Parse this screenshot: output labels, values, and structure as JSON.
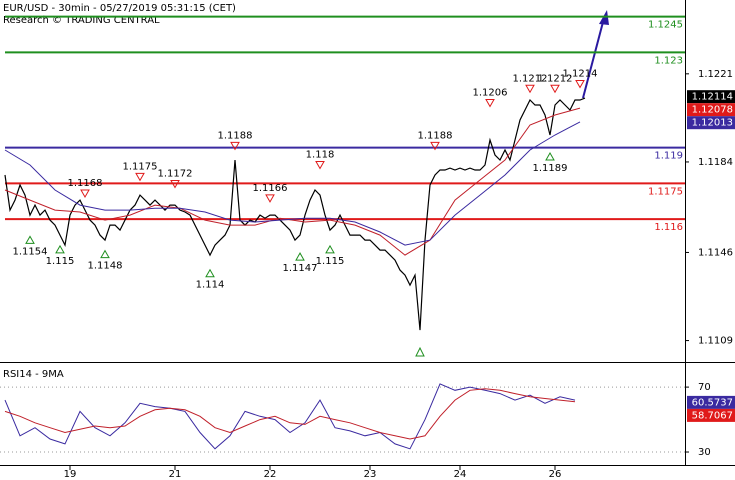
{
  "chart_data": [
    {
      "type": "line",
      "title": "EUR/USD - 30min - 05/27/2019 05:31:15 (CET)",
      "subtitle": "Research © TRADING CENTRAL",
      "xlim": [
        -1,
        136
      ],
      "ylim": [
        1.11,
        1.1252
      ],
      "yticks": [
        1.1221,
        1.1184,
        1.1146,
        1.1109
      ],
      "grid": false,
      "series": [
        {
          "color": "#000000",
          "values": [
            1.11785,
            1.11638,
            1.1168,
            1.11743,
            1.11701,
            1.11617,
            1.11659,
            1.11617,
            1.11638,
            1.11596,
            1.11575,
            1.11533,
            1.11491,
            1.11617,
            1.11659,
            1.1168,
            1.11638,
            1.11596,
            1.11575,
            1.11533,
            1.11512,
            1.11575,
            1.11575,
            1.11554,
            1.11596,
            1.11638,
            1.11659,
            1.11701,
            1.1168,
            1.11659,
            1.1168,
            1.11659,
            1.11638,
            1.11659,
            1.11659,
            1.11638,
            1.1163,
            1.11617,
            1.11575,
            1.11533,
            1.11491,
            1.11449,
            1.11491,
            1.11512,
            1.11533,
            1.11575,
            1.11848,
            1.11596,
            1.11575,
            1.11596,
            1.11588,
            1.11617,
            1.11604,
            1.11617,
            1.11617,
            1.11596,
            1.11575,
            1.11554,
            1.11512,
            1.11533,
            1.11617,
            1.1168,
            1.11722,
            1.11701,
            1.11617,
            1.11554,
            1.11575,
            1.11617,
            1.11575,
            1.11533,
            1.11533,
            1.11533,
            1.11512,
            1.11512,
            1.11491,
            1.1147,
            1.1147,
            1.11449,
            1.11428,
            1.11386,
            1.11365,
            1.11323,
            1.11365,
            1.11134,
            1.11512,
            1.11743,
            1.11785,
            1.11806,
            1.11806,
            1.11814,
            1.11806,
            1.11814,
            1.11806,
            1.11814,
            1.11806,
            1.11806,
            1.11827,
            1.11932,
            1.11869,
            1.11848,
            1.1189,
            1.11848,
            1.11932,
            1.12016,
            1.12058,
            1.121,
            1.12079,
            1.12079,
            1.12037,
            1.11953,
            1.12079,
            1.121,
            1.12079,
            1.12058,
            1.121,
            1.121,
            1.12108
          ]
        },
        {
          "color": "#c0202a",
          "x": [
            0,
            5,
            10,
            15,
            20,
            25,
            30,
            35,
            40,
            45,
            50,
            55,
            60,
            65,
            70,
            75,
            80,
            85,
            90,
            95,
            100,
            105,
            110,
            115
          ],
          "values": [
            1.11722,
            1.1168,
            1.11638,
            1.1163,
            1.11596,
            1.11617,
            1.11659,
            1.11646,
            1.11596,
            1.11575,
            1.11575,
            1.11604,
            1.11588,
            1.11596,
            1.11575,
            1.11533,
            1.11449,
            1.11512,
            1.1168,
            1.11764,
            1.11848,
            1.11995,
            1.12037,
            1.12066
          ]
        },
        {
          "color": "#3a2aa0",
          "x": [
            0,
            5,
            10,
            15,
            20,
            25,
            30,
            35,
            40,
            45,
            50,
            55,
            60,
            65,
            70,
            75,
            80,
            85,
            90,
            95,
            100,
            105,
            110,
            115
          ],
          "values": [
            1.1189,
            1.11827,
            1.11722,
            1.11659,
            1.11638,
            1.11638,
            1.11646,
            1.11646,
            1.1163,
            1.11596,
            1.11588,
            1.11596,
            1.11604,
            1.11604,
            1.11588,
            1.11546,
            1.11491,
            1.11512,
            1.11617,
            1.11701,
            1.11785,
            1.1189,
            1.11953,
            1.12008
          ]
        }
      ],
      "levels": [
        {
          "value": 1.1245,
          "color": "#1f8f1f"
        },
        {
          "value": 1.123,
          "color": "#1f8f1f"
        },
        {
          "value": 1.119,
          "color": "#3a2aa0"
        },
        {
          "value": 1.1175,
          "color": "#e01a1a"
        },
        {
          "value": 1.116,
          "color": "#e01a1a"
        }
      ],
      "price_boxes": [
        {
          "value": 1.12114,
          "color": "#000000"
        },
        {
          "value": 1.12078,
          "color": "#e01a1a"
        },
        {
          "value": 1.12013,
          "color": "#3a2aa0"
        }
      ],
      "annotations": [
        {
          "x": 5,
          "value": 1.1154,
          "marker": "up"
        },
        {
          "x": 11,
          "value": 1.115,
          "marker": "up"
        },
        {
          "x": 16,
          "value": 1.1168,
          "marker": "down"
        },
        {
          "x": 20,
          "value": 1.1148,
          "marker": "up"
        },
        {
          "x": 27,
          "value": 1.1175,
          "marker": "down"
        },
        {
          "x": 34,
          "value": 1.1172,
          "marker": "down"
        },
        {
          "x": 41,
          "value": 1.114,
          "marker": "up"
        },
        {
          "x": 46,
          "value": 1.1188,
          "marker": "down"
        },
        {
          "x": 53,
          "value": 1.1166,
          "marker": "down"
        },
        {
          "x": 59,
          "value": 1.1147,
          "marker": "up"
        },
        {
          "x": 63,
          "value": 1.118,
          "marker": "down"
        },
        {
          "x": 65,
          "value": 1.115,
          "marker": "up"
        },
        {
          "x": 86,
          "value": 1.1188,
          "marker": "down"
        },
        {
          "x": 97,
          "value": 1.1206,
          "marker": "down"
        },
        {
          "x": 105,
          "value": 1.1212,
          "marker": "down"
        },
        {
          "x": 110,
          "value": 1.1212,
          "marker": "down"
        },
        {
          "x": 115,
          "value": 1.1214,
          "marker": "down"
        },
        {
          "x": 109,
          "value": 1.1189,
          "marker": "up"
        }
      ]
    },
    {
      "type": "line",
      "title": "RSI14 - 9MA",
      "xlim": [
        -1,
        136
      ],
      "ylim": [
        22,
        83
      ],
      "yticks": [
        70,
        30
      ],
      "grid": true,
      "xticks": [
        {
          "value": 13,
          "label": "19"
        },
        {
          "value": 34,
          "label": "21"
        },
        {
          "value": 53,
          "label": "22"
        },
        {
          "value": 73,
          "label": "23"
        },
        {
          "value": 91,
          "label": "24"
        },
        {
          "value": 110,
          "label": "26"
        }
      ],
      "series": [
        {
          "color": "#3a2aa0",
          "x": [
            0,
            3,
            6,
            9,
            12,
            15,
            18,
            21,
            24,
            27,
            30,
            33,
            36,
            39,
            42,
            45,
            48,
            51,
            54,
            57,
            60,
            63,
            66,
            69,
            72,
            75,
            78,
            81,
            84,
            87,
            90,
            93,
            96,
            99,
            102,
            105,
            108,
            111,
            114
          ],
          "values": [
            62,
            40,
            45,
            38,
            35,
            55,
            45,
            40,
            48,
            60,
            58,
            57,
            55,
            42,
            32,
            40,
            55,
            52,
            50,
            42,
            48,
            62,
            45,
            43,
            40,
            42,
            35,
            32,
            50,
            72,
            68,
            70,
            68,
            66,
            62,
            65,
            60,
            64,
            62
          ]
        },
        {
          "color": "#c0202a",
          "x": [
            0,
            3,
            6,
            9,
            12,
            15,
            18,
            21,
            24,
            27,
            30,
            33,
            36,
            39,
            42,
            45,
            48,
            51,
            54,
            57,
            60,
            63,
            66,
            69,
            72,
            75,
            78,
            81,
            84,
            87,
            90,
            93,
            96,
            99,
            102,
            105,
            108,
            111,
            114
          ],
          "values": [
            55,
            52,
            48,
            45,
            42,
            44,
            46,
            45,
            46,
            52,
            56,
            57,
            56,
            52,
            45,
            42,
            46,
            50,
            52,
            48,
            47,
            52,
            50,
            48,
            45,
            42,
            40,
            38,
            40,
            52,
            62,
            68,
            69,
            68,
            66,
            64,
            63,
            62,
            61
          ]
        }
      ],
      "price_boxes": [
        {
          "value": 60.5737,
          "color": "#3a2aa0"
        },
        {
          "value": 58.7067,
          "color": "#e01a1a"
        }
      ]
    }
  ]
}
